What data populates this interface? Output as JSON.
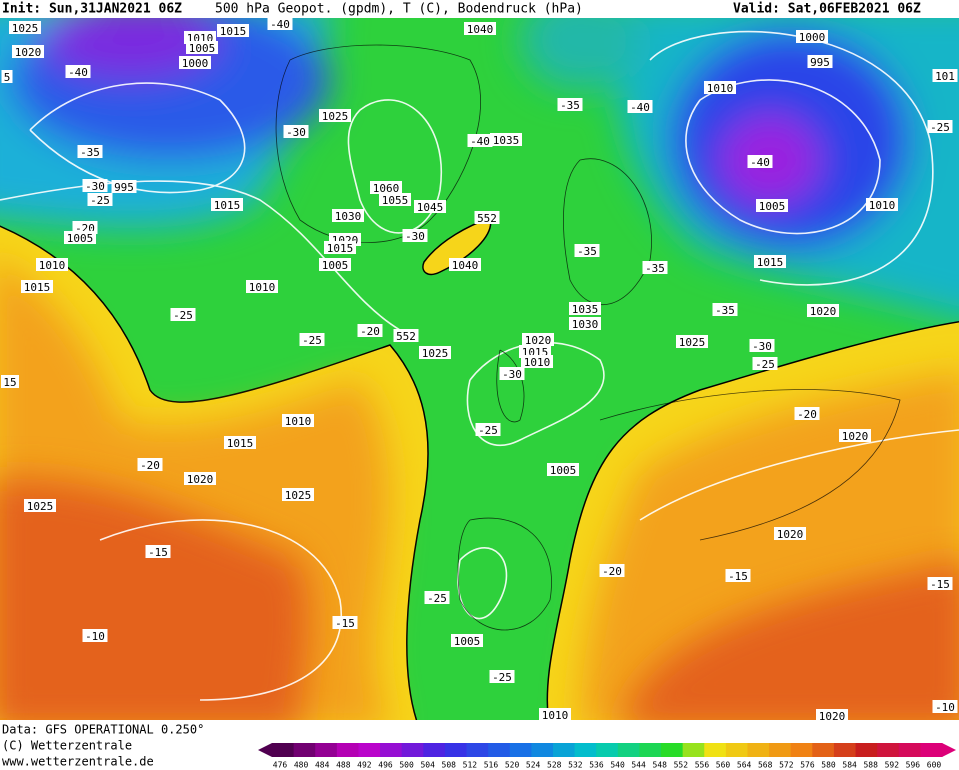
{
  "header": {
    "init": "Init: Sun,31JAN2021 06Z",
    "title": "500 hPa Geopot. (gpdm), T (C), Bodendruck (hPa)",
    "valid": "Valid: Sat,06FEB2021 06Z"
  },
  "map_labels": [
    "1025",
    "1020",
    "1015",
    "1010",
    "1005",
    "1000",
    "-40",
    "1040",
    "1000",
    "995",
    "1010",
    "-40",
    "-35",
    "-40",
    "1025",
    "-30",
    "-40",
    "1035",
    "-25",
    "-35",
    "-40",
    "-30",
    "995",
    "-25",
    "1060",
    "1055",
    "1045",
    "1015",
    "552",
    "1005",
    "1010",
    "1030",
    "-20",
    "1005",
    "1020",
    "1015",
    "-30",
    "1005",
    "1040",
    "-35",
    "1015",
    "-35",
    "1010",
    "1015",
    "1010",
    "1035",
    "1030",
    "-35",
    "1020",
    "-25",
    "-25",
    "-20",
    "552",
    "1025",
    "1020",
    "1015",
    "1010",
    "1025",
    "-30",
    "-25",
    "-30",
    "15",
    "1010",
    "-20",
    "-25",
    "1015",
    "1020",
    "-20",
    "1020",
    "1005",
    "1025",
    "1025",
    "1020",
    "-15",
    "-20",
    "-15",
    "-15",
    "-25",
    "-15",
    "-10",
    "1005",
    "-25",
    "1010",
    "-10",
    "1020",
    "5",
    "101"
  ],
  "footer": [
    "Data: GFS OPERATIONAL 0.250°",
    "(C) Wetterzentrale",
    "www.wetterzentrale.de"
  ],
  "colorbar": [
    476,
    480,
    484,
    488,
    492,
    496,
    500,
    504,
    508,
    512,
    516,
    520,
    524,
    528,
    532,
    536,
    540,
    544,
    548,
    552,
    556,
    560,
    564,
    568,
    572,
    576,
    580,
    584,
    588,
    592,
    596,
    600
  ]
}
